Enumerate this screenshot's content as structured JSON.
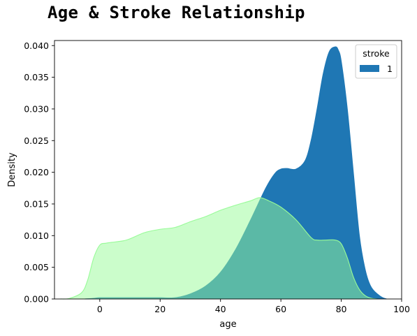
{
  "chart_data": {
    "type": "area",
    "title": "Age & Stroke Relationship",
    "xlabel": "age",
    "ylabel": "Density",
    "xlim": [
      -15,
      100
    ],
    "ylim": [
      0,
      0.0408
    ],
    "x_ticks": [
      0,
      20,
      40,
      60,
      80,
      100
    ],
    "y_ticks": [
      0.0,
      0.005,
      0.01,
      0.015,
      0.02,
      0.025,
      0.03,
      0.035,
      0.04
    ],
    "y_tick_labels": [
      "0.000",
      "0.005",
      "0.010",
      "0.015",
      "0.020",
      "0.025",
      "0.030",
      "0.035",
      "0.040"
    ],
    "grid": false,
    "legend": {
      "title": "stroke",
      "position": "top-right",
      "entries": [
        {
          "label": "1",
          "color": "#1f77b4"
        }
      ]
    },
    "series": [
      {
        "name": "1",
        "color": "#1f77b4",
        "alpha": 1.0,
        "points": [
          [
            -5,
            0.0
          ],
          [
            -2,
            0.0001
          ],
          [
            0,
            0.0002
          ],
          [
            5,
            0.0002
          ],
          [
            10,
            0.0002
          ],
          [
            15,
            0.0002
          ],
          [
            20,
            0.0002
          ],
          [
            25,
            0.0002
          ],
          [
            30,
            0.0008
          ],
          [
            35,
            0.002
          ],
          [
            40,
            0.0042
          ],
          [
            45,
            0.0078
          ],
          [
            50,
            0.0125
          ],
          [
            55,
            0.0175
          ],
          [
            58,
            0.0198
          ],
          [
            60,
            0.0205
          ],
          [
            62,
            0.0206
          ],
          [
            65,
            0.0205
          ],
          [
            68,
            0.0218
          ],
          [
            70,
            0.025
          ],
          [
            72,
            0.03
          ],
          [
            74,
            0.0355
          ],
          [
            76,
            0.039
          ],
          [
            78,
            0.0398
          ],
          [
            79,
            0.0393
          ],
          [
            80,
            0.0375
          ],
          [
            82,
            0.03
          ],
          [
            84,
            0.02
          ],
          [
            86,
            0.01
          ],
          [
            88,
            0.0045
          ],
          [
            90,
            0.0018
          ],
          [
            93,
            0.0004
          ],
          [
            95,
            0.0
          ]
        ]
      },
      {
        "color": "#98fb98",
        "alpha": 0.5,
        "points": [
          [
            -13,
            0.0
          ],
          [
            -10,
            0.0001
          ],
          [
            -6,
            0.001
          ],
          [
            -4,
            0.003
          ],
          [
            -2,
            0.0065
          ],
          [
            0,
            0.0085
          ],
          [
            2,
            0.0088
          ],
          [
            5,
            0.009
          ],
          [
            8,
            0.0092
          ],
          [
            10,
            0.0095
          ],
          [
            15,
            0.0105
          ],
          [
            20,
            0.011
          ],
          [
            25,
            0.0113
          ],
          [
            30,
            0.0122
          ],
          [
            35,
            0.013
          ],
          [
            40,
            0.014
          ],
          [
            45,
            0.0148
          ],
          [
            50,
            0.0155
          ],
          [
            53,
            0.016
          ],
          [
            56,
            0.0155
          ],
          [
            60,
            0.0145
          ],
          [
            65,
            0.0125
          ],
          [
            70,
            0.0097
          ],
          [
            72,
            0.0093
          ],
          [
            75,
            0.0093
          ],
          [
            78,
            0.0093
          ],
          [
            80,
            0.0087
          ],
          [
            82,
            0.0065
          ],
          [
            84,
            0.0035
          ],
          [
            86,
            0.0015
          ],
          [
            88,
            0.0005
          ],
          [
            90,
            0.0001
          ],
          [
            92,
            0.0
          ]
        ]
      }
    ]
  }
}
